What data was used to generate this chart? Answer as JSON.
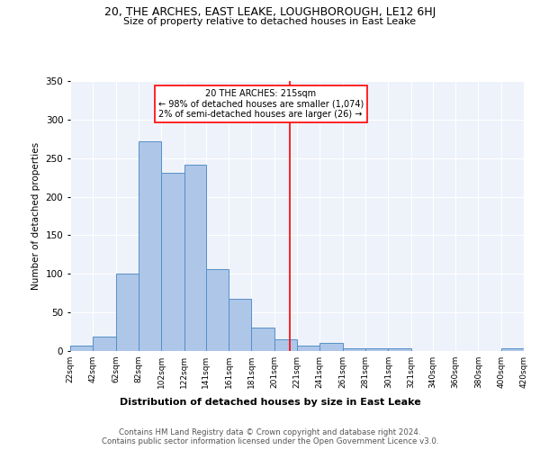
{
  "title": "20, THE ARCHES, EAST LEAKE, LOUGHBOROUGH, LE12 6HJ",
  "subtitle": "Size of property relative to detached houses in East Leake",
  "xlabel": "Distribution of detached houses by size in East Leake",
  "ylabel": "Number of detached properties",
  "bar_color": "#aec6e8",
  "bar_edge_color": "#5590c8",
  "bg_color": "#eef2fa",
  "grid_color": "#ffffff",
  "vline_x": 215,
  "vline_color": "red",
  "annotation_text": "20 THE ARCHES: 215sqm\n← 98% of detached houses are smaller (1,074)\n2% of semi-detached houses are larger (26) →",
  "annotation_box_color": "red",
  "bin_edges": [
    22,
    42,
    62,
    82,
    102,
    122,
    141,
    161,
    181,
    201,
    221,
    241,
    261,
    281,
    301,
    321,
    340,
    360,
    380,
    400,
    420
  ],
  "bin_counts": [
    7,
    19,
    100,
    272,
    231,
    241,
    106,
    68,
    30,
    15,
    7,
    10,
    4,
    4,
    3,
    0,
    0,
    0,
    0,
    3
  ],
  "ylim": [
    0,
    350
  ],
  "yticks": [
    0,
    50,
    100,
    150,
    200,
    250,
    300,
    350
  ],
  "footer_line1": "Contains HM Land Registry data © Crown copyright and database right 2024.",
  "footer_line2": "Contains public sector information licensed under the Open Government Licence v3.0."
}
